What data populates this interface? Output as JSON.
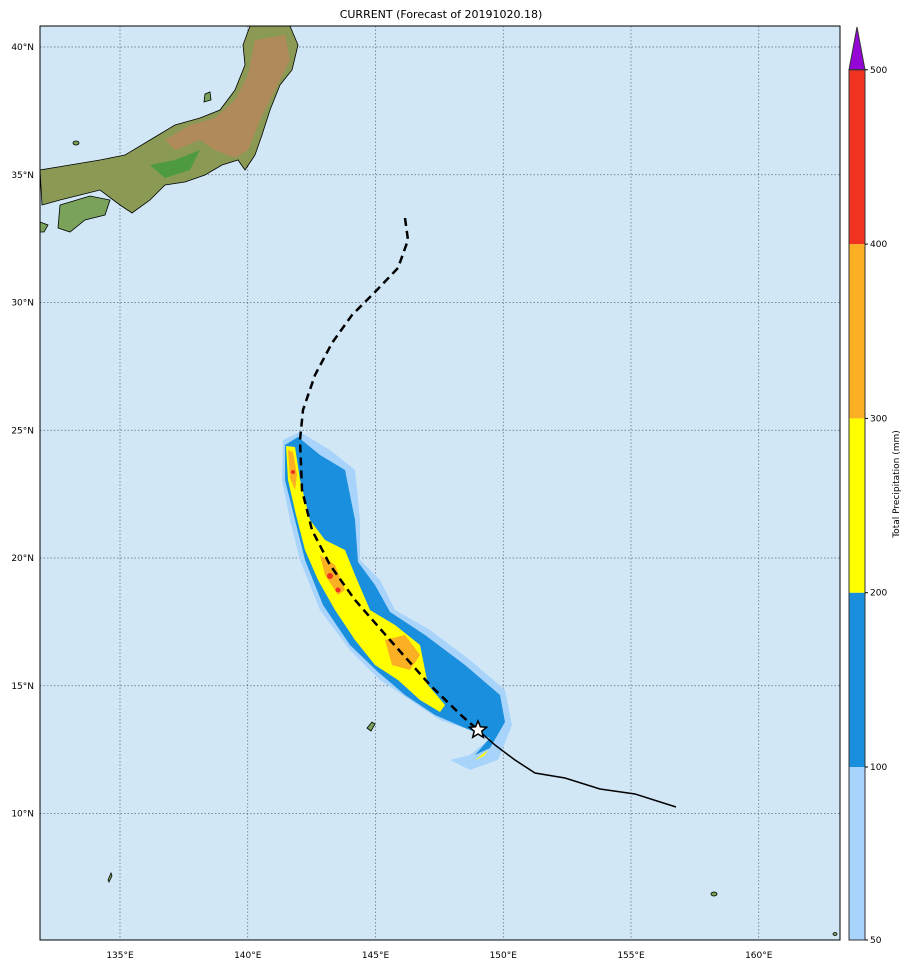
{
  "title": "CURRENT (Forecast of 20191020.18)",
  "map": {
    "lon_ticks": [
      "135°E",
      "140°E",
      "145°E",
      "150°E",
      "155°E",
      "160°E"
    ],
    "lat_ticks": [
      "40°N",
      "35°N",
      "30°N",
      "25°N",
      "20°N",
      "15°N",
      "10°N"
    ],
    "extent": {
      "lon": [
        131.8,
        163.1
      ],
      "lat": [
        4.9,
        40.8
      ]
    },
    "ocean_color": "#d1e7f6",
    "grid": "dotted",
    "track": {
      "past_style": "solid",
      "forecast_style": "dashed",
      "current_position_marker": "star-icon"
    }
  },
  "colorbar": {
    "label": "Total Precipitation (mm)",
    "ticks": [
      "50",
      "100",
      "200",
      "300",
      "400",
      "500"
    ],
    "levels": [
      {
        "from": 50,
        "to": 100,
        "color": "#a8d3fb"
      },
      {
        "from": 100,
        "to": 200,
        "color": "#1a8fdd"
      },
      {
        "from": 200,
        "to": 300,
        "color": "#ffff00"
      },
      {
        "from": 300,
        "to": 400,
        "color": "#fbaf22"
      },
      {
        "from": 400,
        "to": 500,
        "color": "#f03220"
      },
      {
        "from": 500,
        "to": null,
        "color": "#9505d6"
      }
    ]
  }
}
